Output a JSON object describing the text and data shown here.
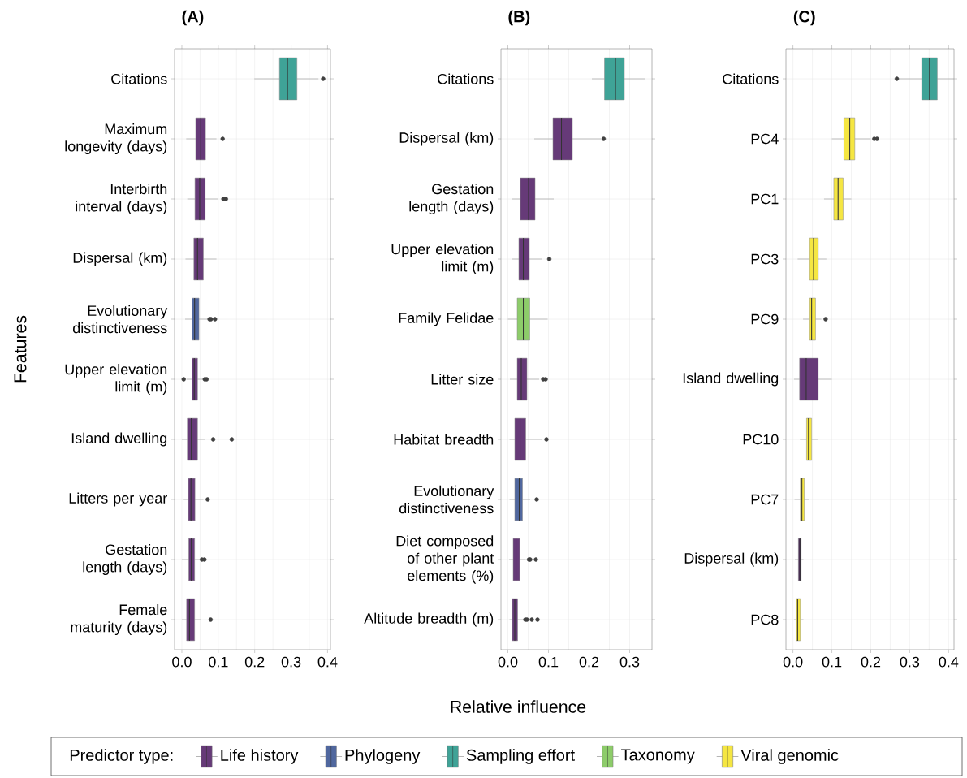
{
  "chart_data": [
    {
      "type": "box",
      "title": "(A)",
      "ylabel": "Features",
      "orientation": "horizontal",
      "grid": true,
      "categories": [
        "Citations",
        "Maximum longevity (days)",
        "Interbirth interval (days)",
        "Dispersal (km)",
        "Evolutionary distinctiveness",
        "Upper elevation limit (m)",
        "Island dwelling",
        "Litters per year",
        "Gestation length (days)",
        "Female maturity (days)"
      ],
      "colors": [
        "#3fa397",
        "#663a78",
        "#663a78",
        "#663a78",
        "#50679e",
        "#663a78",
        "#663a78",
        "#663a78",
        "#663a78",
        "#663a78"
      ],
      "boxes": [
        {
          "low": 0.199,
          "q1": 0.268,
          "median": 0.29,
          "q3": 0.316,
          "high": 0.375,
          "outliers": [
            0.388
          ]
        },
        {
          "low": 0.012,
          "q1": 0.038,
          "median": 0.052,
          "q3": 0.065,
          "high": 0.095,
          "outliers": [
            0.112
          ]
        },
        {
          "low": 0.015,
          "q1": 0.036,
          "median": 0.049,
          "q3": 0.064,
          "high": 0.1,
          "outliers": [
            0.114,
            0.121
          ]
        },
        {
          "low": 0.01,
          "q1": 0.033,
          "median": 0.043,
          "q3": 0.059,
          "high": 0.095
        },
        {
          "low": 0.009,
          "q1": 0.028,
          "median": 0.035,
          "q3": 0.047,
          "high": 0.071,
          "outliers": [
            0.076,
            0.08,
            0.091
          ]
        },
        {
          "low": 0.013,
          "q1": 0.028,
          "median": 0.034,
          "q3": 0.043,
          "high": 0.059,
          "outliers": [
            0.005,
            0.063,
            0.068
          ]
        },
        {
          "low": 0.0,
          "q1": 0.015,
          "median": 0.026,
          "q3": 0.043,
          "high": 0.063,
          "outliers": [
            0.086,
            0.137
          ]
        },
        {
          "low": 0.005,
          "q1": 0.018,
          "median": 0.025,
          "q3": 0.036,
          "high": 0.059,
          "outliers": [
            0.071
          ]
        },
        {
          "low": 0.0,
          "q1": 0.019,
          "median": 0.026,
          "q3": 0.035,
          "high": 0.05,
          "outliers": [
            0.055,
            0.062
          ]
        },
        {
          "low": 0.0,
          "q1": 0.013,
          "median": 0.021,
          "q3": 0.035,
          "high": 0.053,
          "outliers": [
            0.079
          ]
        }
      ],
      "xlim": [
        -0.02,
        0.408
      ],
      "xticks": [
        {
          "value": 0,
          "label": "0.0"
        },
        {
          "value": 0.1,
          "label": "0.1"
        },
        {
          "value": 0.2,
          "label": "0.2"
        },
        {
          "value": 0.3,
          "label": "0.3"
        },
        {
          "value": 0.4,
          "label": "0.4"
        }
      ]
    },
    {
      "type": "box",
      "title": "(B)",
      "xlabel": "Relative influence",
      "orientation": "horizontal",
      "grid": true,
      "categories": [
        "Citations",
        "Dispersal (km)",
        "Gestation length (days)",
        "Upper elevation limit (m)",
        "Family Felidae",
        "Litter size",
        "Habitat breadth",
        "Evolutionary distinctiveness",
        "Diet composed of other plant elements (%)",
        "Altitude breadth (m)"
      ],
      "colors": [
        "#3fa397",
        "#663a78",
        "#663a78",
        "#663a78",
        "#8dcc6a",
        "#663a78",
        "#663a78",
        "#50679e",
        "#663a78",
        "#663a78"
      ],
      "boxes": [
        {
          "low": 0.207,
          "q1": 0.238,
          "median": 0.265,
          "q3": 0.287,
          "high": 0.339
        },
        {
          "low": 0.065,
          "q1": 0.111,
          "median": 0.132,
          "q3": 0.159,
          "high": 0.229,
          "outliers": [
            0.236
          ]
        },
        {
          "low": 0.011,
          "q1": 0.031,
          "median": 0.051,
          "q3": 0.067,
          "high": 0.113
        },
        {
          "low": 0.011,
          "q1": 0.027,
          "median": 0.038,
          "q3": 0.053,
          "high": 0.084,
          "outliers": [
            0.102
          ]
        },
        {
          "low": 0.0,
          "q1": 0.023,
          "median": 0.038,
          "q3": 0.054,
          "high": 0.098
        },
        {
          "low": 0.005,
          "q1": 0.023,
          "median": 0.033,
          "q3": 0.047,
          "high": 0.077,
          "outliers": [
            0.087,
            0.093
          ]
        },
        {
          "low": 0.004,
          "q1": 0.017,
          "median": 0.03,
          "q3": 0.044,
          "high": 0.083,
          "outliers": [
            0.095
          ]
        },
        {
          "low": 0.004,
          "q1": 0.017,
          "median": 0.028,
          "q3": 0.036,
          "high": 0.055,
          "outliers": [
            0.071
          ]
        },
        {
          "low": 0.003,
          "q1": 0.013,
          "median": 0.02,
          "q3": 0.029,
          "high": 0.044,
          "outliers": [
            0.052,
            0.055,
            0.069
          ]
        },
        {
          "low": 0.004,
          "q1": 0.011,
          "median": 0.017,
          "q3": 0.024,
          "high": 0.038,
          "outliers": [
            0.043,
            0.047,
            0.059,
            0.073
          ]
        }
      ],
      "xlim": [
        -0.017,
        0.355
      ],
      "xticks": [
        {
          "value": 0,
          "label": "0.0"
        },
        {
          "value": 0.1,
          "label": "0.1"
        },
        {
          "value": 0.2,
          "label": "0.2"
        },
        {
          "value": 0.3,
          "label": "0.3"
        }
      ]
    },
    {
      "type": "box",
      "title": "(C)",
      "orientation": "horizontal",
      "grid": true,
      "categories": [
        "Citations",
        "PC4",
        "PC1",
        "PC3",
        "PC9",
        "Island dwelling",
        "PC10",
        "PC7",
        "Dispersal (km)",
        "PC8"
      ],
      "colors": [
        "#3fa397",
        "#f5e642",
        "#f5e642",
        "#f5e642",
        "#f5e642",
        "#663a78",
        "#f5e642",
        "#f5e642",
        "#4f2d5e",
        "#f5e642"
      ],
      "boxes": [
        {
          "low": 0.271,
          "q1": 0.331,
          "median": 0.351,
          "q3": 0.371,
          "high": 0.414,
          "outliers": [
            0.267
          ]
        },
        {
          "low": 0.1,
          "q1": 0.131,
          "median": 0.146,
          "q3": 0.159,
          "high": 0.2,
          "outliers": [
            0.209,
            0.216
          ]
        },
        {
          "low": 0.08,
          "q1": 0.105,
          "median": 0.116,
          "q3": 0.129,
          "high": 0.15
        },
        {
          "low": 0.012,
          "q1": 0.043,
          "median": 0.053,
          "q3": 0.065,
          "high": 0.086
        },
        {
          "low": 0.026,
          "q1": 0.043,
          "median": 0.048,
          "q3": 0.058,
          "high": 0.073,
          "outliers": [
            0.084
          ]
        },
        {
          "low": 0.003,
          "q1": 0.017,
          "median": 0.034,
          "q3": 0.065,
          "high": 0.1
        },
        {
          "low": 0.018,
          "q1": 0.035,
          "median": 0.04,
          "q3": 0.048,
          "high": 0.064
        },
        {
          "low": 0.004,
          "q1": 0.019,
          "median": 0.023,
          "q3": 0.029,
          "high": 0.041
        },
        {
          "low": 0.005,
          "q1": 0.014,
          "median": 0.018,
          "q3": 0.021,
          "high": 0.027
        },
        {
          "low": 0.003,
          "q1": 0.009,
          "median": 0.012,
          "q3": 0.019,
          "high": 0.027
        }
      ],
      "xlim": [
        -0.018,
        0.414
      ],
      "xticks": [
        {
          "value": 0,
          "label": "0.0"
        },
        {
          "value": 0.1,
          "label": "0.1"
        },
        {
          "value": 0.2,
          "label": "0.2"
        },
        {
          "value": 0.3,
          "label": "0.3"
        },
        {
          "value": 0.4,
          "label": "0.4"
        }
      ]
    },
    {
      "type": "other",
      "legend_title": "Predictor type:",
      "legend": "bottom",
      "series": [
        {
          "name": "Life history",
          "color": "#663a78"
        },
        {
          "name": "Phylogeny",
          "color": "#50679e"
        },
        {
          "name": "Sampling effort",
          "color": "#3fa397"
        },
        {
          "name": "Taxonomy",
          "color": "#8dcc6a"
        },
        {
          "name": "Viral genomic",
          "color": "#f5e642"
        }
      ]
    }
  ]
}
